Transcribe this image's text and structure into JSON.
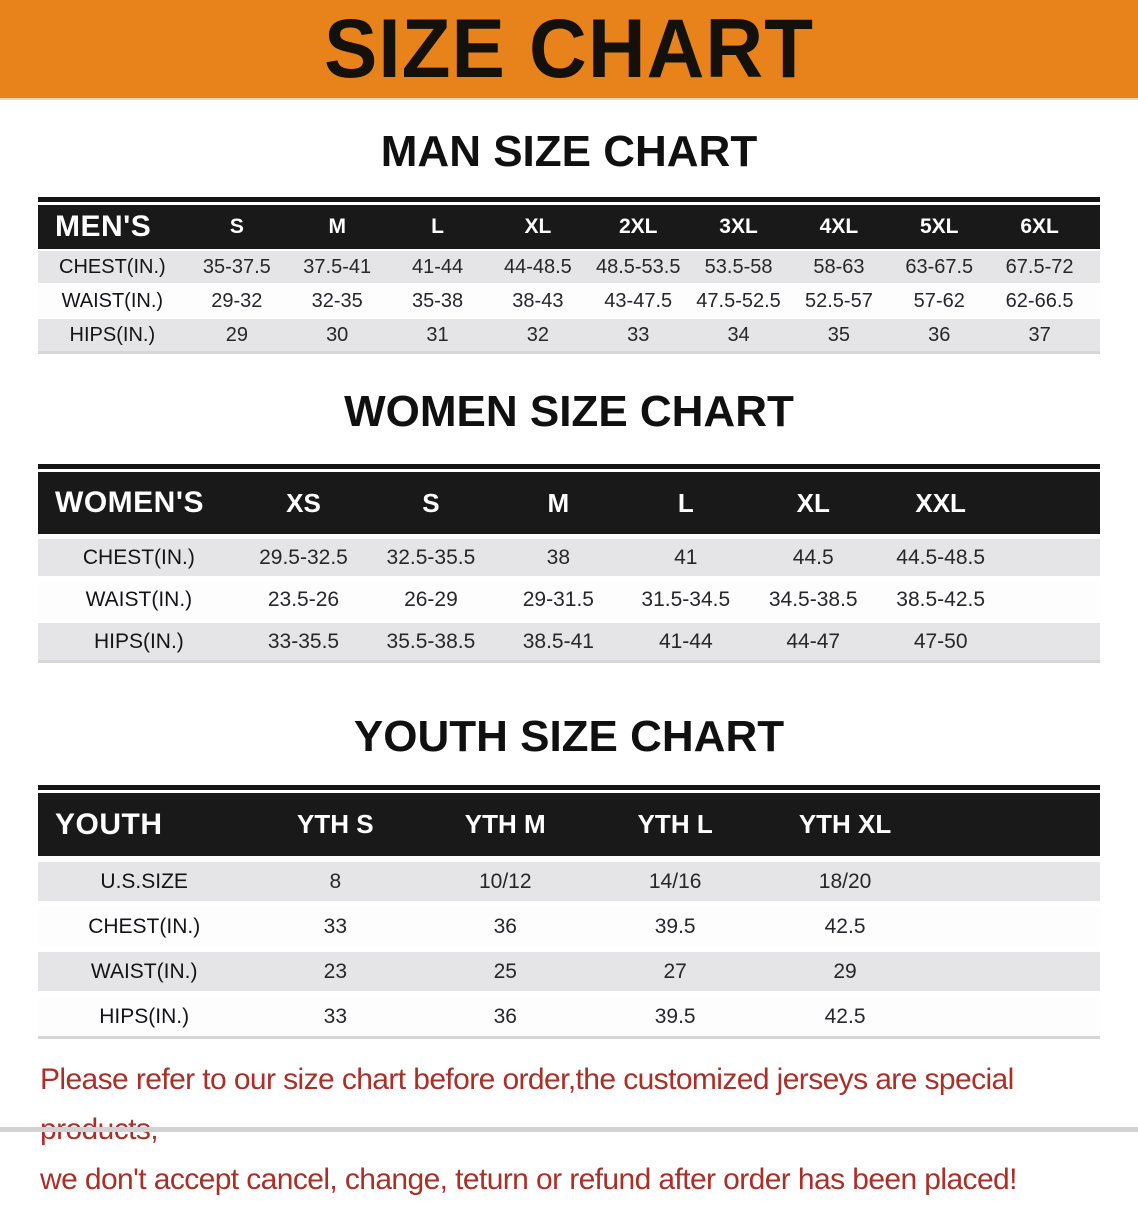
{
  "banner": {
    "title": "SIZE CHART"
  },
  "colors": {
    "banner_bg": "#E8821B",
    "table_header_bg": "#191919",
    "row_stripe": "#E5E5E7",
    "disclaimer_red": "#A93029"
  },
  "sections": [
    {
      "heading": "MAN SIZE CHART",
      "table": {
        "label": "MEN'S",
        "columns": [
          "S",
          "M",
          "L",
          "XL",
          "2XL",
          "3XL",
          "4XL",
          "5XL",
          "6XL"
        ],
        "rows": [
          {
            "label": "CHEST(IN.)",
            "values": [
              "35-37.5",
              "37.5-41",
              "41-44",
              "44-48.5",
              "48.5-53.5",
              "53.5-58",
              "58-63",
              "63-67.5",
              "67.5-72"
            ]
          },
          {
            "label": "WAIST(IN.)",
            "values": [
              "29-32",
              "32-35",
              "35-38",
              "38-43",
              "43-47.5",
              "47.5-52.5",
              "52.5-57",
              "57-62",
              "62-66.5"
            ]
          },
          {
            "label": "HIPS(IN.)",
            "values": [
              "29",
              "30",
              "31",
              "32",
              "33",
              "34",
              "35",
              "36",
              "37"
            ]
          }
        ]
      }
    },
    {
      "heading": "WOMEN SIZE CHART",
      "table": {
        "label": "WOMEN'S",
        "columns": [
          "XS",
          "S",
          "M",
          "L",
          "XL",
          "XXL"
        ],
        "rows": [
          {
            "label": "CHEST(IN.)",
            "values": [
              "29.5-32.5",
              "32.5-35.5",
              "38",
              "41",
              "44.5",
              "44.5-48.5"
            ]
          },
          {
            "label": "WAIST(IN.)",
            "values": [
              "23.5-26",
              "26-29",
              "29-31.5",
              "31.5-34.5",
              "34.5-38.5",
              "38.5-42.5"
            ]
          },
          {
            "label": "HIPS(IN.)",
            "values": [
              "33-35.5",
              "35.5-38.5",
              "38.5-41",
              "41-44",
              "44-47",
              "47-50"
            ]
          }
        ]
      }
    },
    {
      "heading": "YOUTH SIZE CHART",
      "table": {
        "label": "YOUTH",
        "columns": [
          "YTH S",
          "YTH M",
          "YTH L",
          "YTH XL"
        ],
        "rows": [
          {
            "label": "U.S.SIZE",
            "values": [
              "8",
              "10/12",
              "14/16",
              "18/20"
            ]
          },
          {
            "label": "CHEST(IN.)",
            "values": [
              "33",
              "36",
              "39.5",
              "42.5"
            ]
          },
          {
            "label": "WAIST(IN.)",
            "values": [
              "23",
              "25",
              "27",
              "29"
            ]
          },
          {
            "label": "HIPS(IN.)",
            "values": [
              "33",
              "36",
              "39.5",
              "42.5"
            ]
          }
        ]
      }
    }
  ],
  "footer": {
    "line1": "Please refer to our size chart before order,the customized jerseys are special products,",
    "line2": "we don't accept cancel, change, teturn or refund after order has been placed!"
  }
}
